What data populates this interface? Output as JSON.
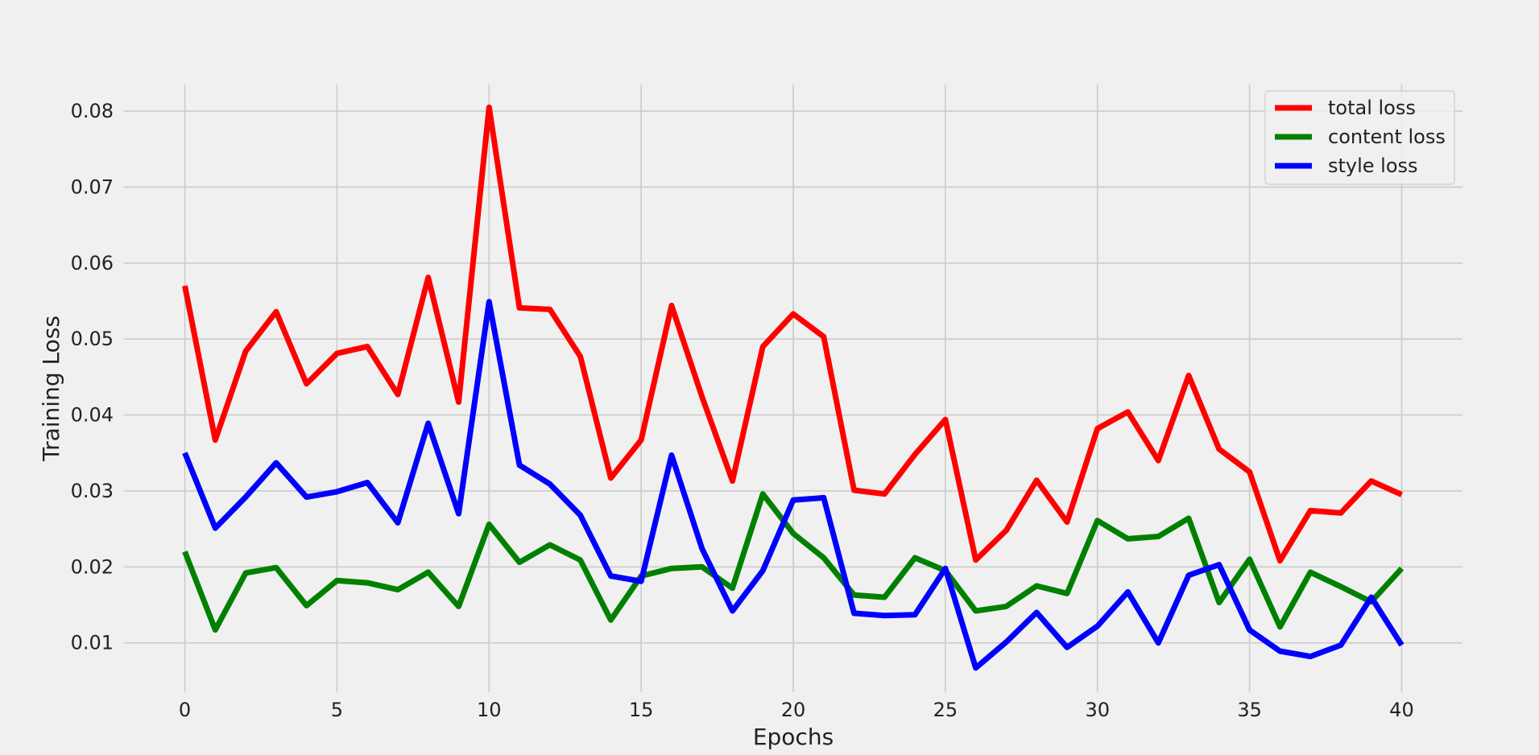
{
  "chart_data": {
    "type": "line",
    "title": "",
    "xlabel": "Epochs",
    "ylabel": "Training Loss",
    "xlim": [
      -2,
      42
    ],
    "ylim": [
      0.0035,
      0.0835
    ],
    "xticks": [
      0,
      5,
      10,
      15,
      20,
      25,
      30,
      35,
      40
    ],
    "xtick_labels": [
      "0",
      "5",
      "10",
      "15",
      "20",
      "25",
      "30",
      "35",
      "40"
    ],
    "yticks": [
      0.01,
      0.02,
      0.03,
      0.04,
      0.05,
      0.06,
      0.07,
      0.08
    ],
    "ytick_labels": [
      "0.01",
      "0.02",
      "0.03",
      "0.04",
      "0.05",
      "0.06",
      "0.07",
      "0.08"
    ],
    "grid": true,
    "legend_position": "top-right",
    "x": [
      0,
      1,
      2,
      3,
      4,
      5,
      6,
      7,
      8,
      9,
      10,
      11,
      12,
      13,
      14,
      15,
      16,
      17,
      18,
      19,
      20,
      21,
      22,
      23,
      24,
      25,
      26,
      27,
      28,
      29,
      30,
      31,
      32,
      33,
      34,
      35,
      36,
      37,
      38,
      39,
      40
    ],
    "series": [
      {
        "name": "total loss",
        "color": "#ff0000",
        "values": [
          0.057,
          0.0367,
          0.0484,
          0.0536,
          0.0441,
          0.0481,
          0.049,
          0.0427,
          0.0581,
          0.0417,
          0.0805,
          0.0541,
          0.0539,
          0.0477,
          0.0317,
          0.0367,
          0.0544,
          0.0424,
          0.0313,
          0.049,
          0.0533,
          0.0503,
          0.0301,
          0.0296,
          0.0348,
          0.0394,
          0.0209,
          0.0248,
          0.0314,
          0.0259,
          0.0382,
          0.0404,
          0.034,
          0.0452,
          0.0355,
          0.0325,
          0.0208,
          0.0274,
          0.0271,
          0.0313,
          0.0295
        ]
      },
      {
        "name": "content loss",
        "color": "#008000",
        "values": [
          0.022,
          0.0117,
          0.0192,
          0.0199,
          0.0149,
          0.0182,
          0.0179,
          0.017,
          0.0193,
          0.0148,
          0.0256,
          0.0206,
          0.0229,
          0.0209,
          0.013,
          0.0188,
          0.0198,
          0.02,
          0.0172,
          0.0296,
          0.0244,
          0.0212,
          0.0163,
          0.016,
          0.0212,
          0.0195,
          0.0142,
          0.0148,
          0.0175,
          0.0165,
          0.0261,
          0.0237,
          0.024,
          0.0264,
          0.0153,
          0.021,
          0.0121,
          0.0193,
          0.0174,
          0.0154,
          0.0198
        ]
      },
      {
        "name": "style loss",
        "color": "#0000ff",
        "values": [
          0.035,
          0.0251,
          0.0292,
          0.0337,
          0.0292,
          0.0299,
          0.0311,
          0.0258,
          0.0389,
          0.027,
          0.0549,
          0.0334,
          0.0309,
          0.0268,
          0.0188,
          0.0181,
          0.0347,
          0.0224,
          0.0142,
          0.0195,
          0.0288,
          0.0291,
          0.0139,
          0.0136,
          0.0137,
          0.0198,
          0.0067,
          0.0101,
          0.014,
          0.0094,
          0.0122,
          0.0167,
          0.01,
          0.0189,
          0.0203,
          0.0117,
          0.0089,
          0.0082,
          0.0097,
          0.016,
          0.0097
        ]
      }
    ]
  }
}
